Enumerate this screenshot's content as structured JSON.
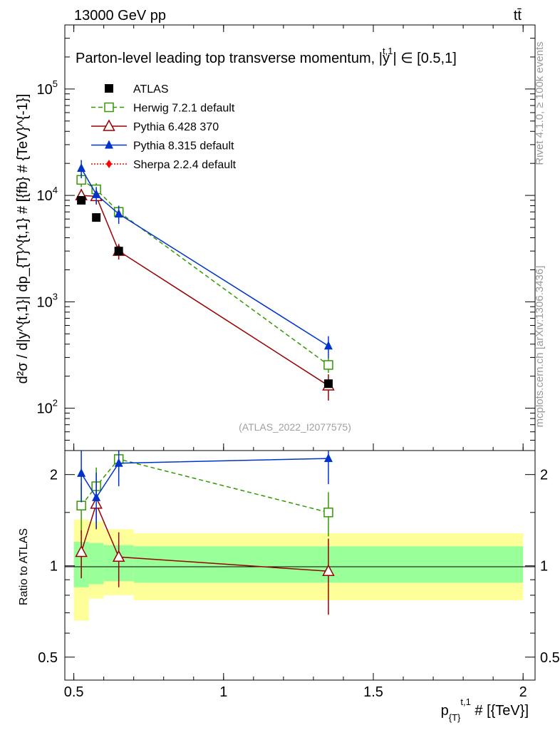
{
  "header": {
    "left": "13000 GeV pp",
    "right": "tt̄"
  },
  "side_labels": {
    "rivet": "Rivet 4.1.0, ≥ 100k events",
    "mcplots": "mcplots.cern.ch [arXiv:1306.3436]"
  },
  "chart_data": {
    "type": "scatter",
    "title": "Parton-level leading top transverse momentum, |ŷt,1| ∈ [0.5,1]",
    "title_main": "Parton-level leading top transverse momentum, |",
    "title_y": "y",
    "title_sup": "t,1",
    "title_tail": "| ∈ [0.5,1]",
    "watermark": "(ATLAS_2022_I2077575)",
    "xlabel": "p_{T}^{t,1} # [{TeV}]",
    "xlabel_main": "p",
    "xlabel_sub": "{T}",
    "xlabel_sup": "t,1",
    "xlabel_tail": " # [{TeV}]",
    "ylabel": "d²σ / d|y^{t,1}| dp_{T}^{t,1} # [{fb} # {TeV}^{-1}]",
    "ylabel_ratio": "Ratio to ATLAS",
    "x_range": [
      0.47,
      2.04
    ],
    "ylim_main": [
      40,
      400000
    ],
    "ylim_ratio": [
      0.42,
      2.4
    ],
    "x_ticks": [
      {
        "v": 0.5,
        "label": "0.5"
      },
      {
        "v": 1,
        "label": "1"
      },
      {
        "v": 1.5,
        "label": "1.5"
      },
      {
        "v": 2,
        "label": "2"
      }
    ],
    "y_ticks_main": [
      {
        "v": 100,
        "label": "10",
        "exp": "2"
      },
      {
        "v": 1000,
        "label": "10",
        "exp": "3"
      },
      {
        "v": 10000,
        "label": "10",
        "exp": "4"
      },
      {
        "v": 100000,
        "label": "10",
        "exp": "5"
      }
    ],
    "y_ticks_ratio": [
      {
        "v": 0.5,
        "label": "0.5"
      },
      {
        "v": 1,
        "label": "1"
      },
      {
        "v": 2,
        "label": "2"
      }
    ],
    "bins": [
      {
        "lo": 0.5,
        "hi": 0.55,
        "band1": [
          0.85,
          1.2
        ],
        "band2": [
          0.66,
          1.42
        ]
      },
      {
        "lo": 0.55,
        "hi": 0.6,
        "band1": [
          0.87,
          1.19
        ],
        "band2": [
          0.78,
          1.4
        ]
      },
      {
        "lo": 0.6,
        "hi": 0.7,
        "band1": [
          0.89,
          1.17
        ],
        "band2": [
          0.8,
          1.32
        ]
      },
      {
        "lo": 0.7,
        "hi": 2.0,
        "band1": [
          0.88,
          1.16
        ],
        "band2": [
          0.77,
          1.28
        ]
      }
    ],
    "data": {
      "name": "ATLAS",
      "x": [
        0.525,
        0.575,
        0.65,
        1.35
      ],
      "y": [
        9000,
        6200,
        3000,
        170
      ]
    },
    "series": [
      {
        "name": "Herwig 7.2.1 default",
        "color": "#339900",
        "dash": "6,4",
        "marker": "open-square",
        "x": [
          0.525,
          0.575,
          0.65,
          1.35
        ],
        "y": [
          14000,
          11400,
          7000,
          255
        ],
        "err": [
          2000,
          1600,
          1000,
          40
        ],
        "ratio": [
          1.58,
          1.83,
          2.25,
          1.5
        ],
        "ratio_err": [
          0.3,
          0.28,
          0.22,
          0.25
        ]
      },
      {
        "name": "Pythia 6.428 370",
        "color": "#990000",
        "dash": "",
        "marker": "open-triangle",
        "x": [
          0.525,
          0.575,
          0.65,
          1.35
        ],
        "y": [
          10000,
          9800,
          3000,
          163
        ],
        "err": [
          1500,
          1600,
          500,
          45
        ],
        "ratio": [
          1.11,
          1.6,
          1.07,
          0.96
        ],
        "ratio_err": [
          0.2,
          0.28,
          0.22,
          0.27
        ]
      },
      {
        "name": "Pythia 8.315 default",
        "color": "#0033cc",
        "dash": "",
        "marker": "filled-triangle",
        "x": [
          0.525,
          0.575,
          0.65,
          1.35
        ],
        "y": [
          18000,
          10200,
          6700,
          385
        ],
        "err": [
          3500,
          1800,
          1300,
          90
        ],
        "ratio": [
          2.02,
          1.68,
          2.18,
          2.26
        ],
        "ratio_err": [
          0.4,
          0.35,
          0.35,
          0.4
        ]
      },
      {
        "name": "Sherpa 2.2.4 default",
        "color": "#ff0000",
        "dash": "2,2",
        "marker": "filled-diamond",
        "x": [],
        "y": [],
        "err": [],
        "ratio": [],
        "ratio_err": []
      }
    ]
  }
}
